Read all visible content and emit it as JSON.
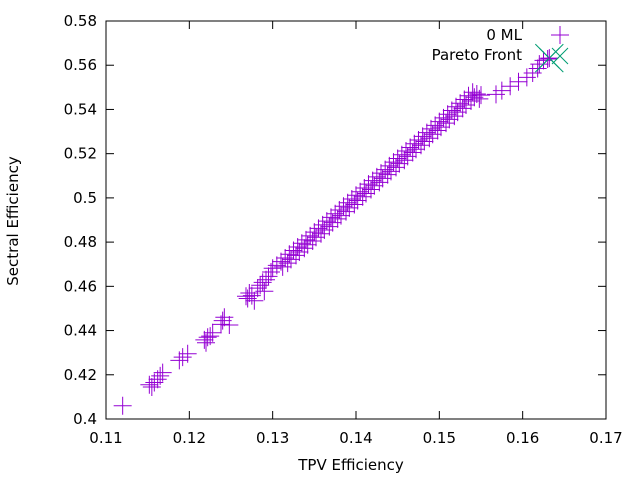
{
  "chart_data": {
    "type": "scatter",
    "xlabel": "TPV Efficiency",
    "ylabel": "Sectral Efficiency",
    "xlim": [
      0.11,
      0.17
    ],
    "ylim": [
      0.4,
      0.58
    ],
    "xticks": [
      0.11,
      0.12,
      0.13,
      0.14,
      0.15,
      0.16,
      0.17
    ],
    "yticks": [
      0.4,
      0.42,
      0.44,
      0.46,
      0.48,
      0.5,
      0.52,
      0.54,
      0.56,
      0.58
    ],
    "xtick_labels": [
      "0.11",
      "0.12",
      "0.13",
      "0.14",
      "0.15",
      "0.16",
      "0.17"
    ],
    "ytick_labels": [
      "0.4",
      "0.42",
      "0.44",
      "0.46",
      "0.48",
      "0.5",
      "0.52",
      "0.54",
      "0.56",
      "0.58"
    ],
    "grid": false,
    "legend_position": "top-right",
    "series": [
      {
        "name": "0 ML",
        "marker": "plus",
        "color": "#9400d3",
        "points": [
          [
            0.112,
            0.406
          ],
          [
            0.1152,
            0.4155
          ],
          [
            0.1155,
            0.4145
          ],
          [
            0.1158,
            0.4165
          ],
          [
            0.1162,
            0.418
          ],
          [
            0.1165,
            0.4195
          ],
          [
            0.1168,
            0.421
          ],
          [
            0.1188,
            0.4265
          ],
          [
            0.1192,
            0.428
          ],
          [
            0.1198,
            0.4295
          ],
          [
            0.1218,
            0.4358
          ],
          [
            0.122,
            0.4345
          ],
          [
            0.1222,
            0.437
          ],
          [
            0.1225,
            0.4375
          ],
          [
            0.1228,
            0.439
          ],
          [
            0.1238,
            0.4428
          ],
          [
            0.124,
            0.4445
          ],
          [
            0.1242,
            0.446
          ],
          [
            0.1248,
            0.4425
          ],
          [
            0.1268,
            0.4555
          ],
          [
            0.127,
            0.4545
          ],
          [
            0.1272,
            0.457
          ],
          [
            0.1275,
            0.4558
          ],
          [
            0.1278,
            0.4535
          ],
          [
            0.1282,
            0.4592
          ],
          [
            0.1285,
            0.4605
          ],
          [
            0.1288,
            0.4618
          ],
          [
            0.129,
            0.4578
          ],
          [
            0.1292,
            0.463
          ],
          [
            0.1295,
            0.4645
          ],
          [
            0.1298,
            0.4665
          ],
          [
            0.13,
            0.4682
          ],
          [
            0.1305,
            0.4695
          ],
          [
            0.131,
            0.4712
          ],
          [
            0.1312,
            0.4688
          ],
          [
            0.1315,
            0.4728
          ],
          [
            0.1318,
            0.4705
          ],
          [
            0.132,
            0.4745
          ],
          [
            0.1322,
            0.4722
          ],
          [
            0.1325,
            0.4762
          ],
          [
            0.1328,
            0.474
          ],
          [
            0.133,
            0.4778
          ],
          [
            0.1332,
            0.4755
          ],
          [
            0.1335,
            0.4795
          ],
          [
            0.1338,
            0.4772
          ],
          [
            0.134,
            0.481
          ],
          [
            0.1342,
            0.4788
          ],
          [
            0.1345,
            0.4828
          ],
          [
            0.1348,
            0.4805
          ],
          [
            0.135,
            0.4845
          ],
          [
            0.1352,
            0.4822
          ],
          [
            0.1355,
            0.4862
          ],
          [
            0.1358,
            0.4838
          ],
          [
            0.136,
            0.4878
          ],
          [
            0.1362,
            0.4855
          ],
          [
            0.1365,
            0.4895
          ],
          [
            0.1368,
            0.487
          ],
          [
            0.137,
            0.4912
          ],
          [
            0.1372,
            0.4888
          ],
          [
            0.1375,
            0.4928
          ],
          [
            0.1378,
            0.4905
          ],
          [
            0.138,
            0.4945
          ],
          [
            0.1382,
            0.492
          ],
          [
            0.1385,
            0.4962
          ],
          [
            0.1388,
            0.4938
          ],
          [
            0.139,
            0.4978
          ],
          [
            0.1392,
            0.4955
          ],
          [
            0.1395,
            0.4995
          ],
          [
            0.1398,
            0.497
          ],
          [
            0.14,
            0.5012
          ],
          [
            0.1402,
            0.4988
          ],
          [
            0.1405,
            0.5028
          ],
          [
            0.1408,
            0.5005
          ],
          [
            0.141,
            0.5045
          ],
          [
            0.1412,
            0.502
          ],
          [
            0.1415,
            0.5062
          ],
          [
            0.1418,
            0.5038
          ],
          [
            0.142,
            0.5078
          ],
          [
            0.1422,
            0.5055
          ],
          [
            0.1425,
            0.5095
          ],
          [
            0.1428,
            0.507
          ],
          [
            0.143,
            0.5112
          ],
          [
            0.1432,
            0.5088
          ],
          [
            0.1435,
            0.5128
          ],
          [
            0.1438,
            0.5105
          ],
          [
            0.144,
            0.5145
          ],
          [
            0.1442,
            0.512
          ],
          [
            0.1445,
            0.5162
          ],
          [
            0.1448,
            0.5138
          ],
          [
            0.145,
            0.5178
          ],
          [
            0.1452,
            0.5155
          ],
          [
            0.1455,
            0.5195
          ],
          [
            0.1458,
            0.517
          ],
          [
            0.146,
            0.5212
          ],
          [
            0.1462,
            0.5188
          ],
          [
            0.1465,
            0.5228
          ],
          [
            0.1468,
            0.5205
          ],
          [
            0.147,
            0.5245
          ],
          [
            0.1472,
            0.522
          ],
          [
            0.1475,
            0.5262
          ],
          [
            0.1478,
            0.5238
          ],
          [
            0.148,
            0.5278
          ],
          [
            0.1482,
            0.5255
          ],
          [
            0.1485,
            0.5295
          ],
          [
            0.1488,
            0.527
          ],
          [
            0.149,
            0.5312
          ],
          [
            0.1492,
            0.5288
          ],
          [
            0.1495,
            0.5328
          ],
          [
            0.1498,
            0.5305
          ],
          [
            0.15,
            0.5345
          ],
          [
            0.1502,
            0.532
          ],
          [
            0.1505,
            0.5362
          ],
          [
            0.1508,
            0.5338
          ],
          [
            0.151,
            0.5378
          ],
          [
            0.1512,
            0.5355
          ],
          [
            0.1515,
            0.5395
          ],
          [
            0.1518,
            0.537
          ],
          [
            0.152,
            0.5412
          ],
          [
            0.1522,
            0.5388
          ],
          [
            0.1525,
            0.5428
          ],
          [
            0.1528,
            0.5405
          ],
          [
            0.153,
            0.5445
          ],
          [
            0.1532,
            0.542
          ],
          [
            0.1535,
            0.5462
          ],
          [
            0.1538,
            0.5438
          ],
          [
            0.154,
            0.5478
          ],
          [
            0.1542,
            0.5455
          ],
          [
            0.1545,
            0.547
          ],
          [
            0.1548,
            0.5448
          ],
          [
            0.155,
            0.5465
          ],
          [
            0.1568,
            0.5468
          ],
          [
            0.1575,
            0.5485
          ],
          [
            0.1585,
            0.5505
          ],
          [
            0.1595,
            0.5525
          ],
          [
            0.1605,
            0.5545
          ],
          [
            0.1612,
            0.5565
          ],
          [
            0.1618,
            0.5585
          ],
          [
            0.162,
            0.5605
          ],
          [
            0.1625,
            0.5622
          ],
          [
            0.163,
            0.5628
          ]
        ]
      },
      {
        "name": "Pareto Front",
        "marker": "cross",
        "color": "#009e73",
        "points": [
          [
            0.1632,
            0.5632
          ]
        ]
      }
    ]
  }
}
